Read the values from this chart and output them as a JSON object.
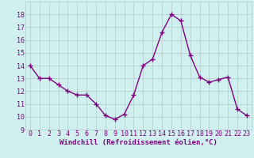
{
  "x": [
    0,
    1,
    2,
    3,
    4,
    5,
    6,
    7,
    8,
    9,
    10,
    11,
    12,
    13,
    14,
    15,
    16,
    17,
    18,
    19,
    20,
    21,
    22,
    23
  ],
  "y": [
    14.0,
    13.0,
    13.0,
    12.5,
    12.0,
    11.7,
    11.7,
    11.0,
    10.1,
    9.8,
    10.2,
    11.7,
    14.0,
    14.5,
    16.6,
    18.0,
    17.5,
    14.8,
    13.1,
    12.7,
    12.9,
    13.1,
    10.6,
    10.1
  ],
  "line_color": "#800080",
  "marker": "+",
  "marker_size": 4,
  "linewidth": 1.0,
  "xlim": [
    -0.5,
    23.5
  ],
  "ylim": [
    9,
    19
  ],
  "yticks": [
    9,
    10,
    11,
    12,
    13,
    14,
    15,
    16,
    17,
    18
  ],
  "xticks": [
    0,
    1,
    2,
    3,
    4,
    5,
    6,
    7,
    8,
    9,
    10,
    11,
    12,
    13,
    14,
    15,
    16,
    17,
    18,
    19,
    20,
    21,
    22,
    23
  ],
  "xlabel": "Windchill (Refroidissement éolien,°C)",
  "background_color": "#cff0ee",
  "grid_color": "#b0c8c8",
  "tick_color": "#800080",
  "label_color": "#800080",
  "xlabel_fontsize": 6.5,
  "tick_fontsize": 6.0
}
